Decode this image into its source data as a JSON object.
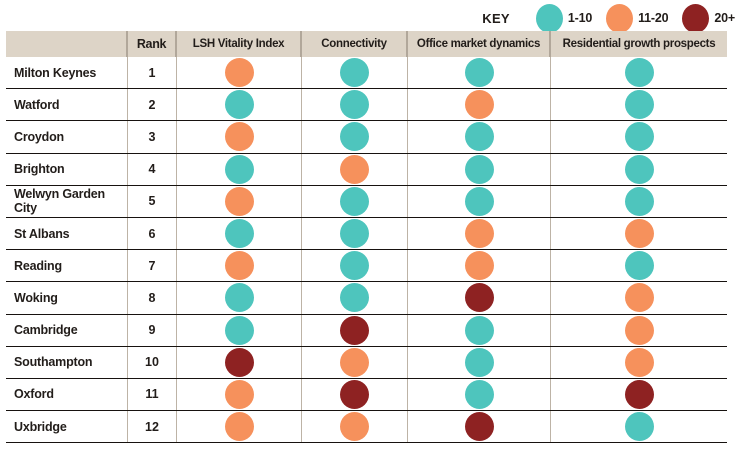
{
  "colors": {
    "teal": "#4ec5bd",
    "orange": "#f6915c",
    "darkred": "#8e2222",
    "header_bg": "#ddd4c7",
    "grid_vertical": "#bdb3a6",
    "grid_horizontal": "#17120f"
  },
  "key": {
    "title": "KEY"
  },
  "chart_data": {
    "type": "table",
    "legend_title": "KEY",
    "legend": [
      {
        "label": "1-10",
        "color": "#4ec5bd"
      },
      {
        "label": "11-20",
        "color": "#f6915c"
      },
      {
        "label": "20+",
        "color": "#8e2222"
      }
    ],
    "columns": [
      "Rank",
      "LSH Vitality Index",
      "Connectivity",
      "Office market dynamics",
      "Residential growth prospects"
    ],
    "rows": [
      {
        "city": "Milton Keynes",
        "rank": 1,
        "ratings": [
          "11-20",
          "1-10",
          "1-10",
          "1-10"
        ]
      },
      {
        "city": "Watford",
        "rank": 2,
        "ratings": [
          "1-10",
          "1-10",
          "11-20",
          "1-10"
        ]
      },
      {
        "city": "Croydon",
        "rank": 3,
        "ratings": [
          "11-20",
          "1-10",
          "1-10",
          "1-10"
        ]
      },
      {
        "city": "Brighton",
        "rank": 4,
        "ratings": [
          "1-10",
          "11-20",
          "1-10",
          "1-10"
        ]
      },
      {
        "city": "Welwyn Garden City",
        "rank": 5,
        "ratings": [
          "11-20",
          "1-10",
          "1-10",
          "1-10"
        ]
      },
      {
        "city": "St Albans",
        "rank": 6,
        "ratings": [
          "1-10",
          "1-10",
          "11-20",
          "11-20"
        ]
      },
      {
        "city": "Reading",
        "rank": 7,
        "ratings": [
          "11-20",
          "1-10",
          "11-20",
          "1-10"
        ]
      },
      {
        "city": "Woking",
        "rank": 8,
        "ratings": [
          "1-10",
          "1-10",
          "20+",
          "11-20"
        ]
      },
      {
        "city": "Cambridge",
        "rank": 9,
        "ratings": [
          "1-10",
          "20+",
          "1-10",
          "11-20"
        ]
      },
      {
        "city": "Southampton",
        "rank": 10,
        "ratings": [
          "20+",
          "11-20",
          "1-10",
          "11-20"
        ]
      },
      {
        "city": "Oxford",
        "rank": 11,
        "ratings": [
          "11-20",
          "20+",
          "1-10",
          "20+"
        ]
      },
      {
        "city": "Uxbridge",
        "rank": 12,
        "ratings": [
          "11-20",
          "11-20",
          "20+",
          "1-10"
        ]
      }
    ]
  }
}
